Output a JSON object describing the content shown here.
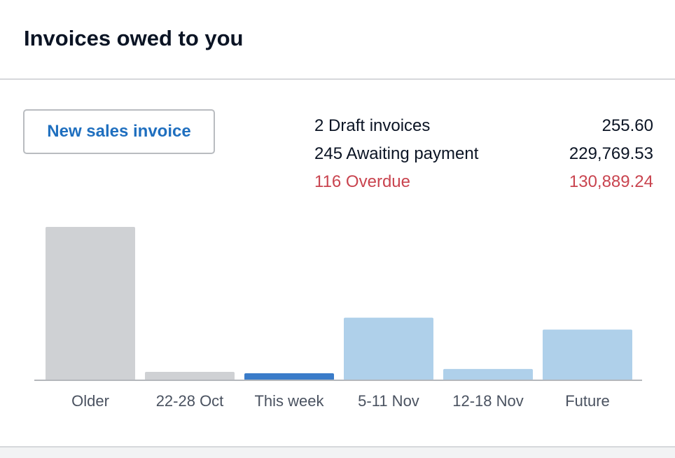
{
  "widget": {
    "title": "Invoices owed to you"
  },
  "actions": {
    "new_invoice_label": "New sales invoice"
  },
  "summary": [
    {
      "label": "2 Draft invoices",
      "amount": "255.60",
      "status": "draft"
    },
    {
      "label": "245 Awaiting payment",
      "amount": "229,769.53",
      "status": "awaiting"
    },
    {
      "label": "116 Overdue",
      "amount": "130,889.24",
      "status": "overdue"
    }
  ],
  "colors": {
    "overdue": "#c9444f",
    "link": "#1f6fbf",
    "past": "#cfd1d4",
    "current": "#3a7cc9",
    "future": "#afd0ea"
  },
  "chart_data": {
    "type": "bar",
    "categories": [
      "Older",
      "22-28 Oct",
      "This week",
      "5-11 Nov",
      "12-18 Nov",
      "Future"
    ],
    "values": [
      218,
      12,
      10,
      89,
      16,
      72
    ],
    "bar_states": [
      "past",
      "past",
      "current",
      "future",
      "future",
      "future"
    ],
    "title": "",
    "xlabel": "",
    "ylabel": "",
    "ylim": [
      0,
      218
    ],
    "grid": false,
    "legend": "none"
  }
}
